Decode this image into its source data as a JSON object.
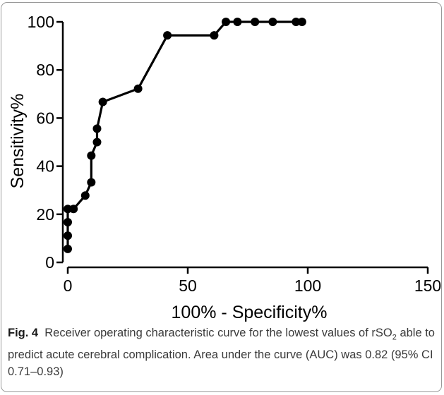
{
  "chart_data": {
    "type": "line",
    "xlabel": "100% - Specificity%",
    "ylabel": "Sensitivity%",
    "xlim": [
      0,
      150
    ],
    "ylim": [
      0,
      100
    ],
    "xticks": [
      0,
      50,
      100,
      150
    ],
    "yticks": [
      0,
      20,
      40,
      60,
      80,
      100
    ],
    "grid": false,
    "series": [
      {
        "x": [
          0,
          0,
          0,
          0,
          2.4,
          7.3,
          9.8,
          9.8,
          12.2,
          12.2,
          14.6,
          29.3,
          41.5,
          61.0,
          65.9,
          70.7,
          78.0,
          85.4,
          95.1,
          97.6
        ],
        "y": [
          5.6,
          11.1,
          16.7,
          22.2,
          22.2,
          27.8,
          33.3,
          44.4,
          50.0,
          55.6,
          66.7,
          72.2,
          94.4,
          94.4,
          100,
          100,
          100,
          100,
          100,
          100
        ],
        "color": "#000000"
      }
    ]
  },
  "caption": {
    "label": "Fig. 4",
    "text_before_sub": "Receiver operating characteristic curve for the lowest values of rSO",
    "subscript": "2",
    "text_after_sub": " able to predict acute cerebral complication. Area under the curve (AUC) was 0.82 (95% CI 0.71–0.93)"
  }
}
